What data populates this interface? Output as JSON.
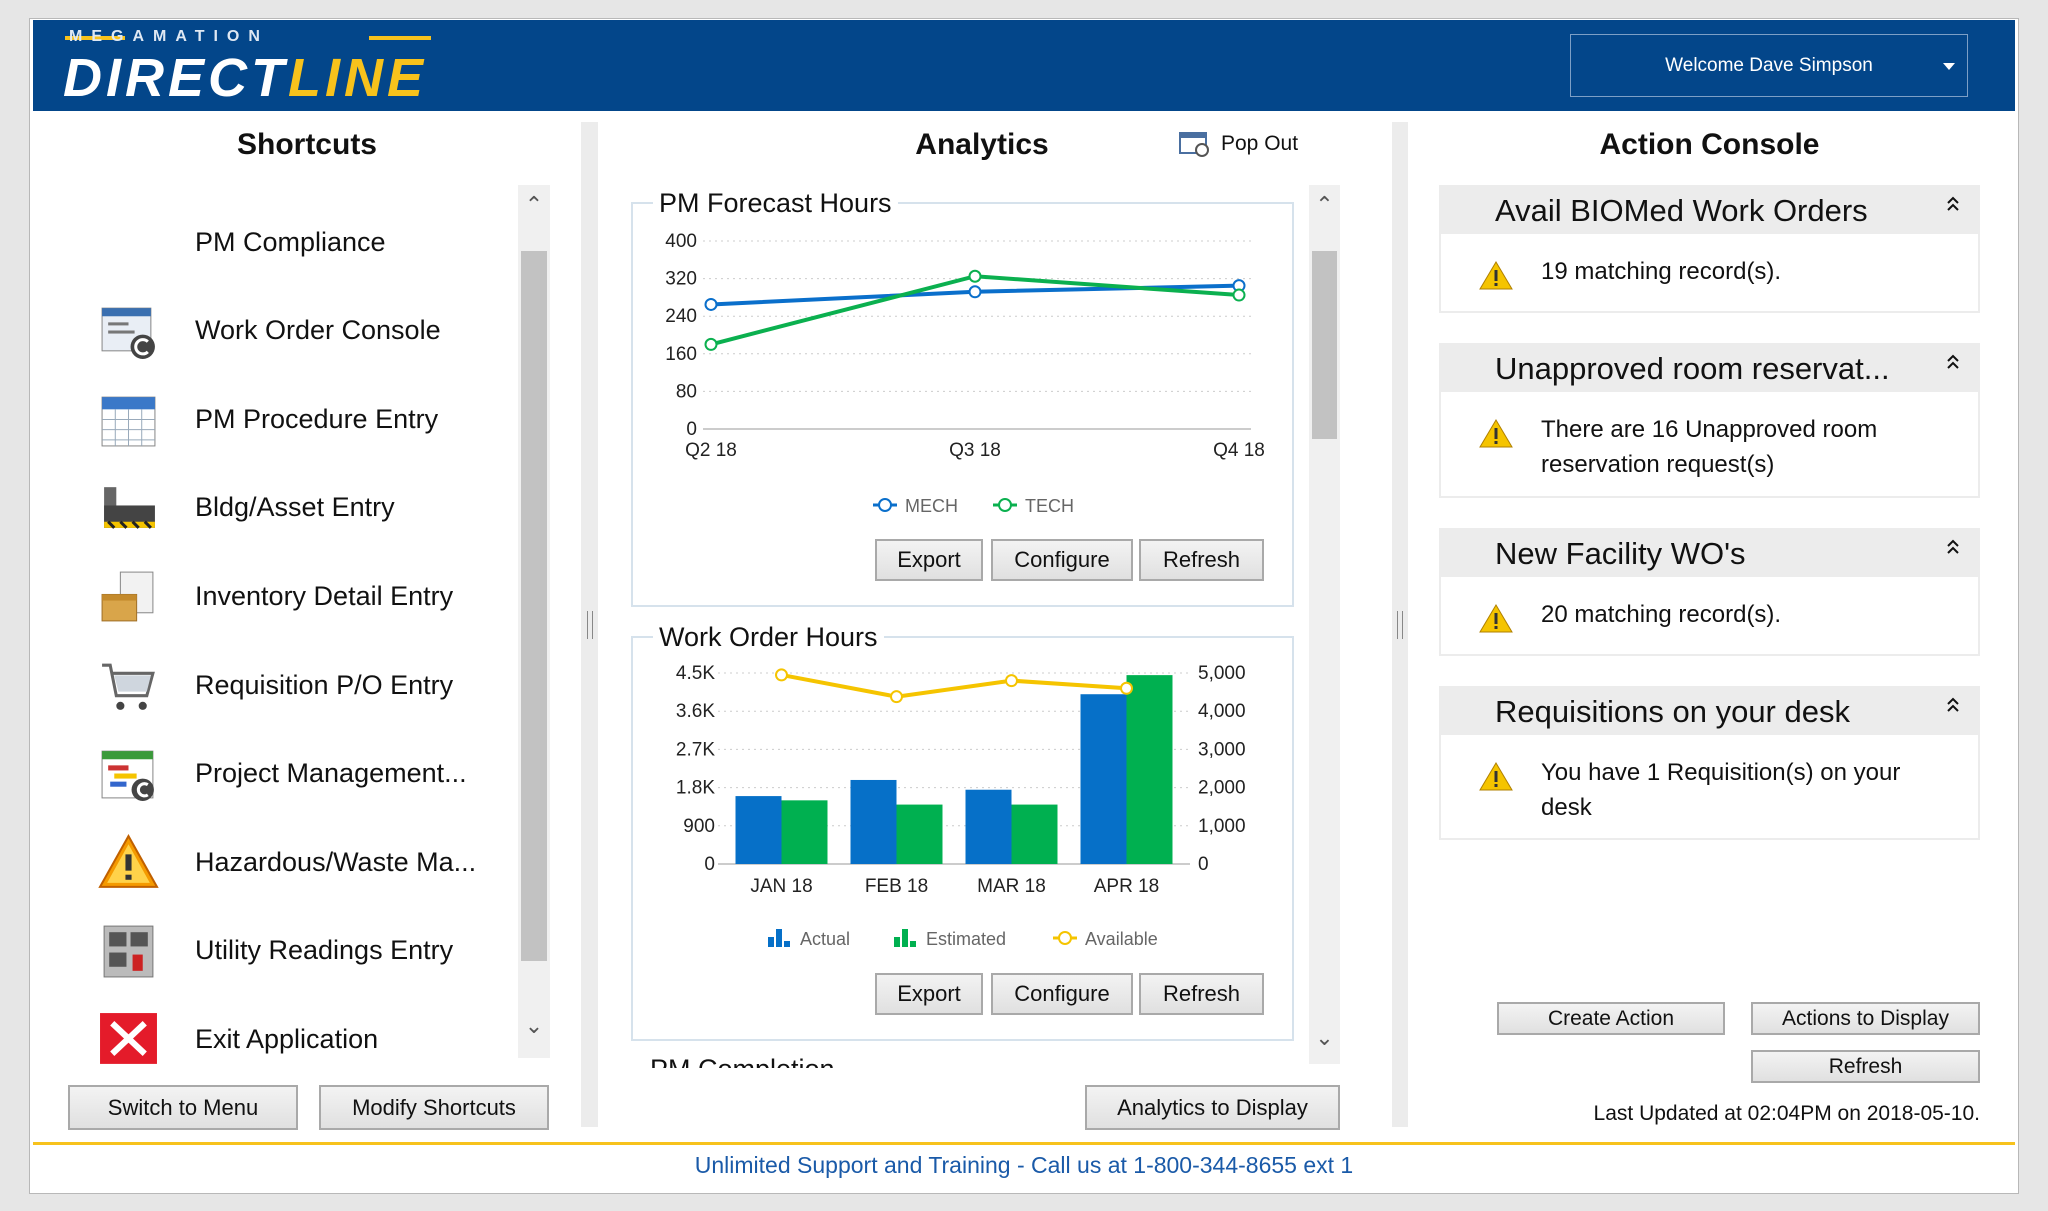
{
  "header": {
    "logo_top": "MEGAMATION",
    "logo_left": "DIRECT",
    "logo_right": "LINE",
    "welcome": "Welcome  Dave Simpson"
  },
  "shortcuts": {
    "title": "Shortcuts",
    "items": [
      {
        "label": "PM Compliance",
        "icon": "none"
      },
      {
        "label": "Work Order Console",
        "icon": "work-order-console-icon"
      },
      {
        "label": "PM Procedure Entry",
        "icon": "calendar-icon"
      },
      {
        "label": "Bldg/Asset Entry",
        "icon": "building-asset-icon"
      },
      {
        "label": "Inventory Detail Entry",
        "icon": "inventory-box-icon"
      },
      {
        "label": "Requisition P/O Entry",
        "icon": "shopping-cart-icon"
      },
      {
        "label": "Project Management...",
        "icon": "project-gantt-icon"
      },
      {
        "label": "Hazardous/Waste Ma...",
        "icon": "hazard-warning-icon"
      },
      {
        "label": "Utility Readings Entry",
        "icon": "utility-meter-icon"
      },
      {
        "label": "Exit Application",
        "icon": "exit-x-icon"
      }
    ],
    "switch_label": "Switch to Menu",
    "modify_label": "Modify Shortcuts"
  },
  "analytics": {
    "title": "Analytics",
    "popout": "Pop Out",
    "next_panel": "PM Completion",
    "display_label": "Analytics to Display",
    "buttons": {
      "export": "Export",
      "configure": "Configure",
      "refresh": "Refresh"
    }
  },
  "chart_data": [
    {
      "type": "line",
      "title": "PM Forecast Hours",
      "categories": [
        "Q2 18",
        "Q3 18",
        "Q4 18"
      ],
      "yticks": [
        "0",
        "80",
        "160",
        "240",
        "320",
        "400"
      ],
      "ylim": [
        0,
        400
      ],
      "grid": true,
      "legend": "bottom",
      "series": [
        {
          "name": "MECH",
          "values": [
            265,
            292,
            305
          ],
          "color": "#0a6fcb"
        },
        {
          "name": "TECH",
          "values": [
            180,
            325,
            285
          ],
          "color": "#0bb04f"
        }
      ]
    },
    {
      "type": "bar",
      "title": "Work Order Hours",
      "categories": [
        "JAN 18",
        "FEB 18",
        "MAR 18",
        "APR 18"
      ],
      "yticks": [
        "0",
        "900",
        "1.8K",
        "2.7K",
        "3.6K",
        "4.5K"
      ],
      "ylim": [
        0,
        4500
      ],
      "y2ticks": [
        "0",
        "1,000",
        "2,000",
        "3,000",
        "4,000",
        "5,000"
      ],
      "y2lim": [
        0,
        5000
      ],
      "grid": true,
      "legend": "bottom",
      "series": [
        {
          "name": "Actual",
          "values": [
            1600,
            1980,
            1750,
            4000
          ],
          "color": "#0670c8",
          "axis": "left"
        },
        {
          "name": "Estimated",
          "values": [
            1500,
            1400,
            1400,
            4450
          ],
          "color": "#00b050",
          "axis": "left"
        },
        {
          "name": "Available",
          "type": "line",
          "values": [
            4950,
            4380,
            4800,
            4600
          ],
          "color": "#f5c400",
          "axis": "right"
        }
      ]
    }
  ],
  "console": {
    "title": "Action Console",
    "cards": [
      {
        "title": "Avail BIOMed Work Orders",
        "body": "19 matching record(s)."
      },
      {
        "title": "Unapproved room reservat...",
        "body": "There are 16 Unapproved room reservation request(s)"
      },
      {
        "title": "New Facility WO's",
        "body": "20 matching record(s)."
      },
      {
        "title": "Requisitions on your desk",
        "body": "You have 1 Requisition(s) on your desk"
      }
    ],
    "create_label": "Create Action",
    "display_label": "Actions to Display",
    "refresh_label": "Refresh",
    "last_updated": "Last Updated at 02:04PM on 2018-05-10."
  },
  "footer": {
    "text": "Unlimited Support and Training - Call us at 1-800-344-8655 ext 1"
  },
  "colors": {
    "header": "#03468a",
    "accent": "#f7c21c",
    "footer_text": "#1a5aa8"
  }
}
